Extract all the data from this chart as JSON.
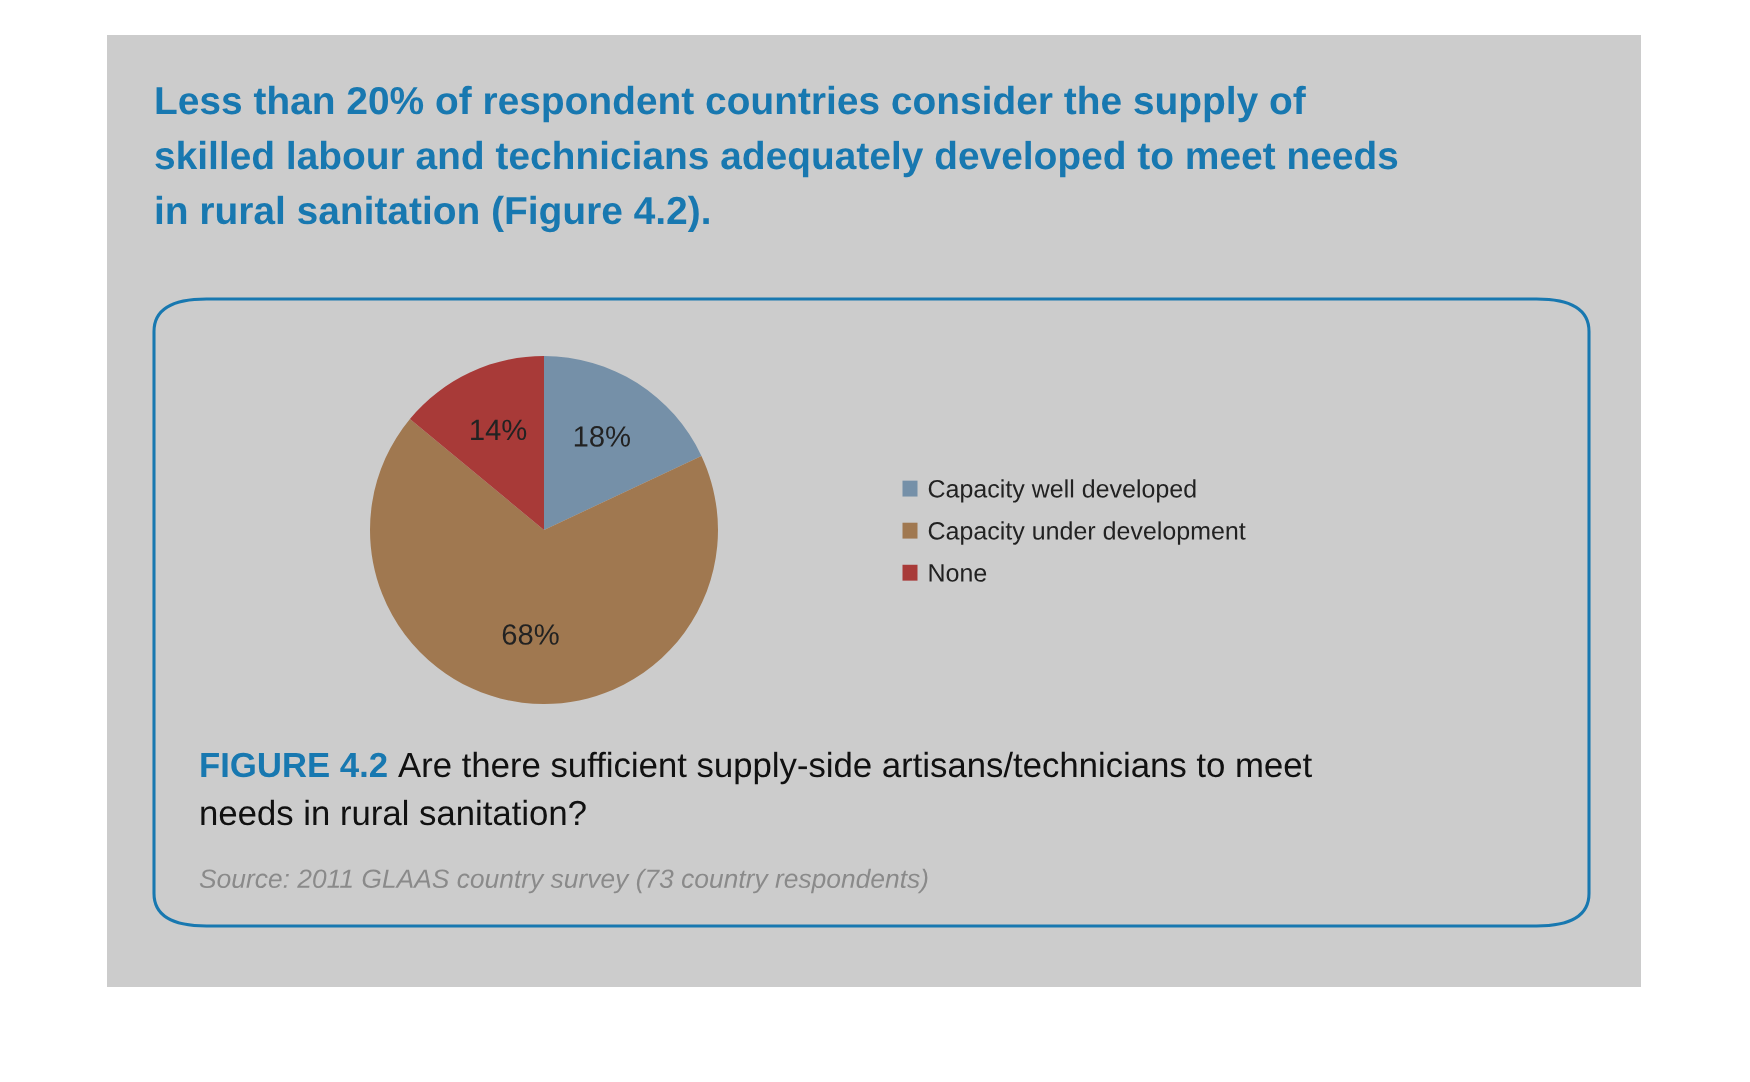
{
  "chart_data": {
    "type": "pie",
    "title": "Less than 20% of respondent countries consider the supply of skilled labour and technicians adequately developed to meet needs in rural sanitation (Figure 4.2).",
    "categories": [
      "Capacity well developed",
      "Capacity under development",
      "None"
    ],
    "values": [
      18,
      68,
      14
    ],
    "colors": [
      "#7590a8",
      "#a07850",
      "#a83a38"
    ],
    "value_labels": [
      "18%",
      "68%",
      "14%"
    ],
    "legend": "right",
    "annotations": [
      "FIGURE 4.2",
      "Are there sufficient supply-side artisans/technicians to meet needs in rural sanitation?",
      "Source: 2011 GLAAS country survey (73 country respondents)"
    ]
  }
}
